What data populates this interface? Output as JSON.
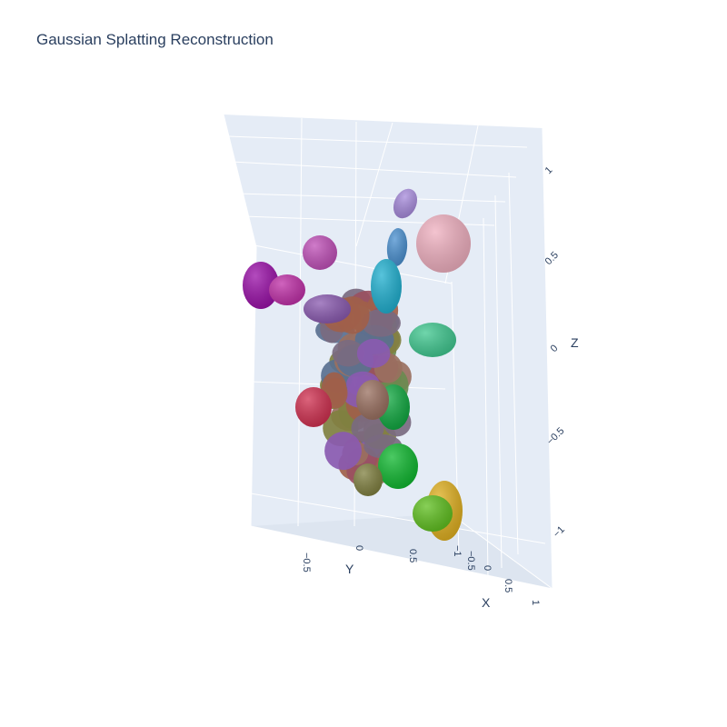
{
  "chart_data": {
    "type": "scatter3d",
    "title": "Gaussian Splatting Reconstruction",
    "marker_shape": "ellipsoid",
    "background_color": "#e5ecf6",
    "grid_color": "#ffffff",
    "axes": {
      "x": {
        "title": "X",
        "ticks": [
          "−1",
          "−0.5",
          "0",
          "0.5",
          "1"
        ],
        "range": [
          -1,
          1
        ]
      },
      "y": {
        "title": "Y",
        "ticks": [
          "−0.5",
          "0",
          "0.5"
        ],
        "range": [
          -1,
          1
        ]
      },
      "z": {
        "title": "Z",
        "ticks": [
          "1",
          "0.5",
          "0",
          "−0.5",
          "−1"
        ],
        "range": [
          -1,
          1
        ]
      }
    },
    "splats": [
      {
        "color": "#a78bdc"
      },
      {
        "color": "#f0b0c0"
      },
      {
        "color": "#4a90d0"
      },
      {
        "color": "#c050b8"
      },
      {
        "color": "#9a10a8"
      },
      {
        "color": "#c030a8"
      },
      {
        "color": "#40c890"
      },
      {
        "color": "#10a840"
      },
      {
        "color": "#10b830"
      },
      {
        "color": "#e0b020"
      },
      {
        "color": "#60c020"
      },
      {
        "color": "#d03050"
      },
      {
        "color": "#20b0d0"
      },
      {
        "color": "#8a5ab0"
      },
      {
        "color": "#9a7060"
      },
      {
        "color": "#808040"
      }
    ]
  }
}
